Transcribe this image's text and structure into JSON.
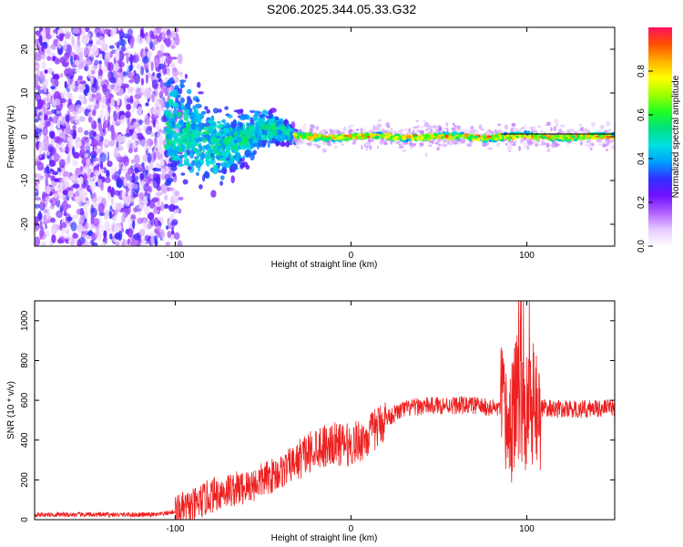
{
  "title": "S206.2025.344.05.33.G32",
  "chart_data": [
    {
      "type": "heatmap",
      "name": "spectrogram",
      "xlabel": "Height of straight line (km)",
      "ylabel": "Frequency (Hz)",
      "xlim": [
        -180,
        150
      ],
      "ylim": [
        -25,
        25
      ],
      "xticks": [
        -100,
        0,
        100
      ],
      "yticks": [
        -20,
        -10,
        0,
        10,
        20
      ],
      "colorbar": {
        "label": "Normalized spectral amplitude",
        "range": [
          0,
          1
        ],
        "ticks": [
          0.0,
          0.2,
          0.4,
          0.6,
          0.8
        ],
        "tick_labels": [
          "0.0",
          "0.2",
          "0.4",
          "0.6",
          "0.8"
        ],
        "colors": [
          "#ffffff",
          "#e6c8ff",
          "#b060ff",
          "#7010ff",
          "#3030ff",
          "#00a0ff",
          "#00e0e0",
          "#00e080",
          "#20ff20",
          "#a0ff00",
          "#ffff00",
          "#ffb000",
          "#ff5000",
          "#ff1060"
        ]
      },
      "description_segments": [
        {
          "x_range": [
            -180,
            -100
          ],
          "pattern": "broadband scatter across full frequency range"
        },
        {
          "x_range": [
            -100,
            -30
          ],
          "pattern": "energy converging toward 0 Hz with ~+2 Hz wobble"
        },
        {
          "x_range": [
            -30,
            150
          ],
          "pattern": "narrow line at ~0 Hz, amplitude 0.6-1.0"
        }
      ]
    },
    {
      "type": "line",
      "name": "snr",
      "xlabel": "Height of straight line (km)",
      "ylabel": "SNR (10 * v/v)",
      "xlim": [
        -180,
        150
      ],
      "ylim": [
        0,
        1100
      ],
      "xticks": [
        -100,
        0,
        100
      ],
      "yticks": [
        0,
        200,
        400,
        600,
        800,
        1000
      ],
      "color": "#ee2020",
      "series_envelope": {
        "x": [
          -180,
          -110,
          -100,
          -90,
          -80,
          -70,
          -60,
          -50,
          -40,
          -30,
          -20,
          -10,
          0,
          10,
          20,
          30,
          40,
          50,
          60,
          70,
          80,
          85,
          90,
          95,
          100,
          105,
          110,
          120,
          130,
          140,
          150
        ],
        "y": [
          25,
          25,
          40,
          65,
          120,
          150,
          160,
          200,
          240,
          300,
          370,
          380,
          375,
          420,
          510,
          555,
          570,
          575,
          575,
          575,
          560,
          560,
          450,
          620,
          540,
          565,
          560,
          555,
          555,
          560,
          560
        ]
      }
    }
  ]
}
